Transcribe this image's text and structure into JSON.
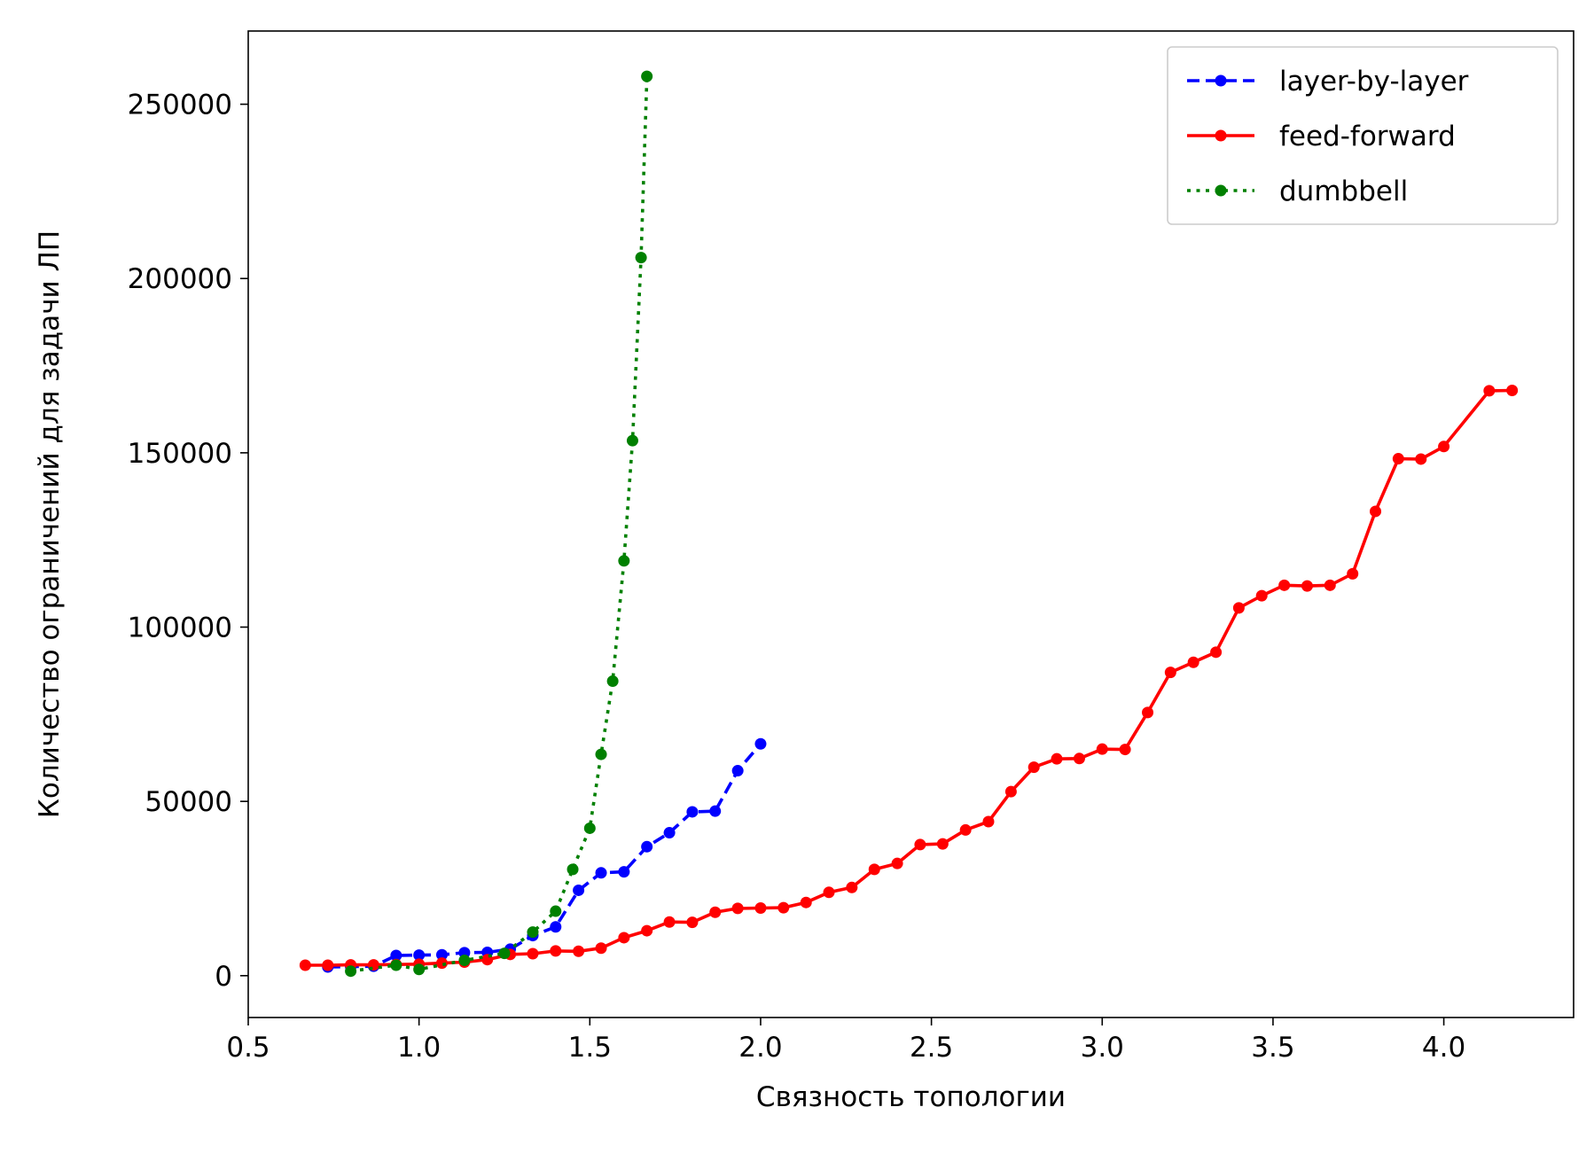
{
  "chart_data": {
    "type": "line",
    "title": "",
    "xlabel": "Связность топологии",
    "ylabel": "Количество ограничений для задачи ЛП",
    "xlim": [
      0.5,
      4.38
    ],
    "ylim": [
      -12000,
      271000
    ],
    "xticks": [
      0.5,
      1.0,
      1.5,
      2.0,
      2.5,
      3.0,
      3.5,
      4.0
    ],
    "xtick_labels": [
      "0.5",
      "1.0",
      "1.5",
      "2.0",
      "2.5",
      "3.0",
      "3.5",
      "4.0"
    ],
    "yticks": [
      0,
      50000,
      100000,
      150000,
      200000,
      250000
    ],
    "ytick_labels": [
      "0",
      "50000",
      "100000",
      "150000",
      "200000",
      "250000"
    ],
    "grid": false,
    "legend_position": "top-right",
    "series": [
      {
        "name": "layer-by-layer",
        "color": "#0000ff",
        "linestyle": "dashed",
        "x": [
          0.733,
          0.8,
          0.867,
          0.933,
          1.0,
          1.067,
          1.133,
          1.2,
          1.267,
          1.333,
          1.4,
          1.467,
          1.533,
          1.6,
          1.667,
          1.733,
          1.8,
          1.867,
          1.933,
          2.0
        ],
        "y": [
          2500,
          2600,
          2700,
          5800,
          5900,
          6000,
          6600,
          6700,
          7600,
          11500,
          14000,
          24500,
          29500,
          29800,
          37000,
          41000,
          47000,
          47200,
          58800,
          66500
        ]
      },
      {
        "name": "feed-forward",
        "color": "#ff0000",
        "linestyle": "solid",
        "x": [
          0.667,
          0.733,
          0.8,
          0.867,
          0.933,
          1.0,
          1.067,
          1.133,
          1.2,
          1.267,
          1.333,
          1.4,
          1.467,
          1.533,
          1.6,
          1.667,
          1.733,
          1.8,
          1.867,
          1.933,
          2.0,
          2.067,
          2.133,
          2.2,
          2.267,
          2.333,
          2.4,
          2.467,
          2.533,
          2.6,
          2.667,
          2.733,
          2.8,
          2.867,
          2.933,
          3.0,
          3.067,
          3.133,
          3.2,
          3.267,
          3.333,
          3.4,
          3.467,
          3.533,
          3.6,
          3.667,
          3.733,
          3.8,
          3.867,
          3.933,
          4.0,
          4.133,
          4.2
        ],
        "y": [
          3000,
          3000,
          3100,
          3100,
          3200,
          3300,
          3600,
          3900,
          4600,
          6100,
          6300,
          7100,
          7000,
          7900,
          10900,
          12900,
          15400,
          15300,
          18200,
          19300,
          19400,
          19500,
          21000,
          23900,
          25300,
          30500,
          32200,
          37600,
          37800,
          41800,
          44200,
          52800,
          59800,
          62200,
          62300,
          65000,
          64900,
          75500,
          87000,
          89900,
          92800,
          105500,
          109000,
          112000,
          111800,
          112000,
          115300,
          133200,
          148300,
          148200,
          151800,
          167800,
          167900
        ]
      },
      {
        "name": "dumbbell",
        "color": "#008000",
        "linestyle": "dotted",
        "x": [
          0.8,
          0.933,
          1.0,
          1.133,
          1.25,
          1.333,
          1.4,
          1.45,
          1.5,
          1.533,
          1.567,
          1.6,
          1.625,
          1.65,
          1.667
        ],
        "y": [
          1300,
          3000,
          1800,
          4400,
          6400,
          12500,
          18500,
          30500,
          42300,
          63500,
          84500,
          119000,
          153500,
          206000,
          258000
        ]
      }
    ]
  }
}
